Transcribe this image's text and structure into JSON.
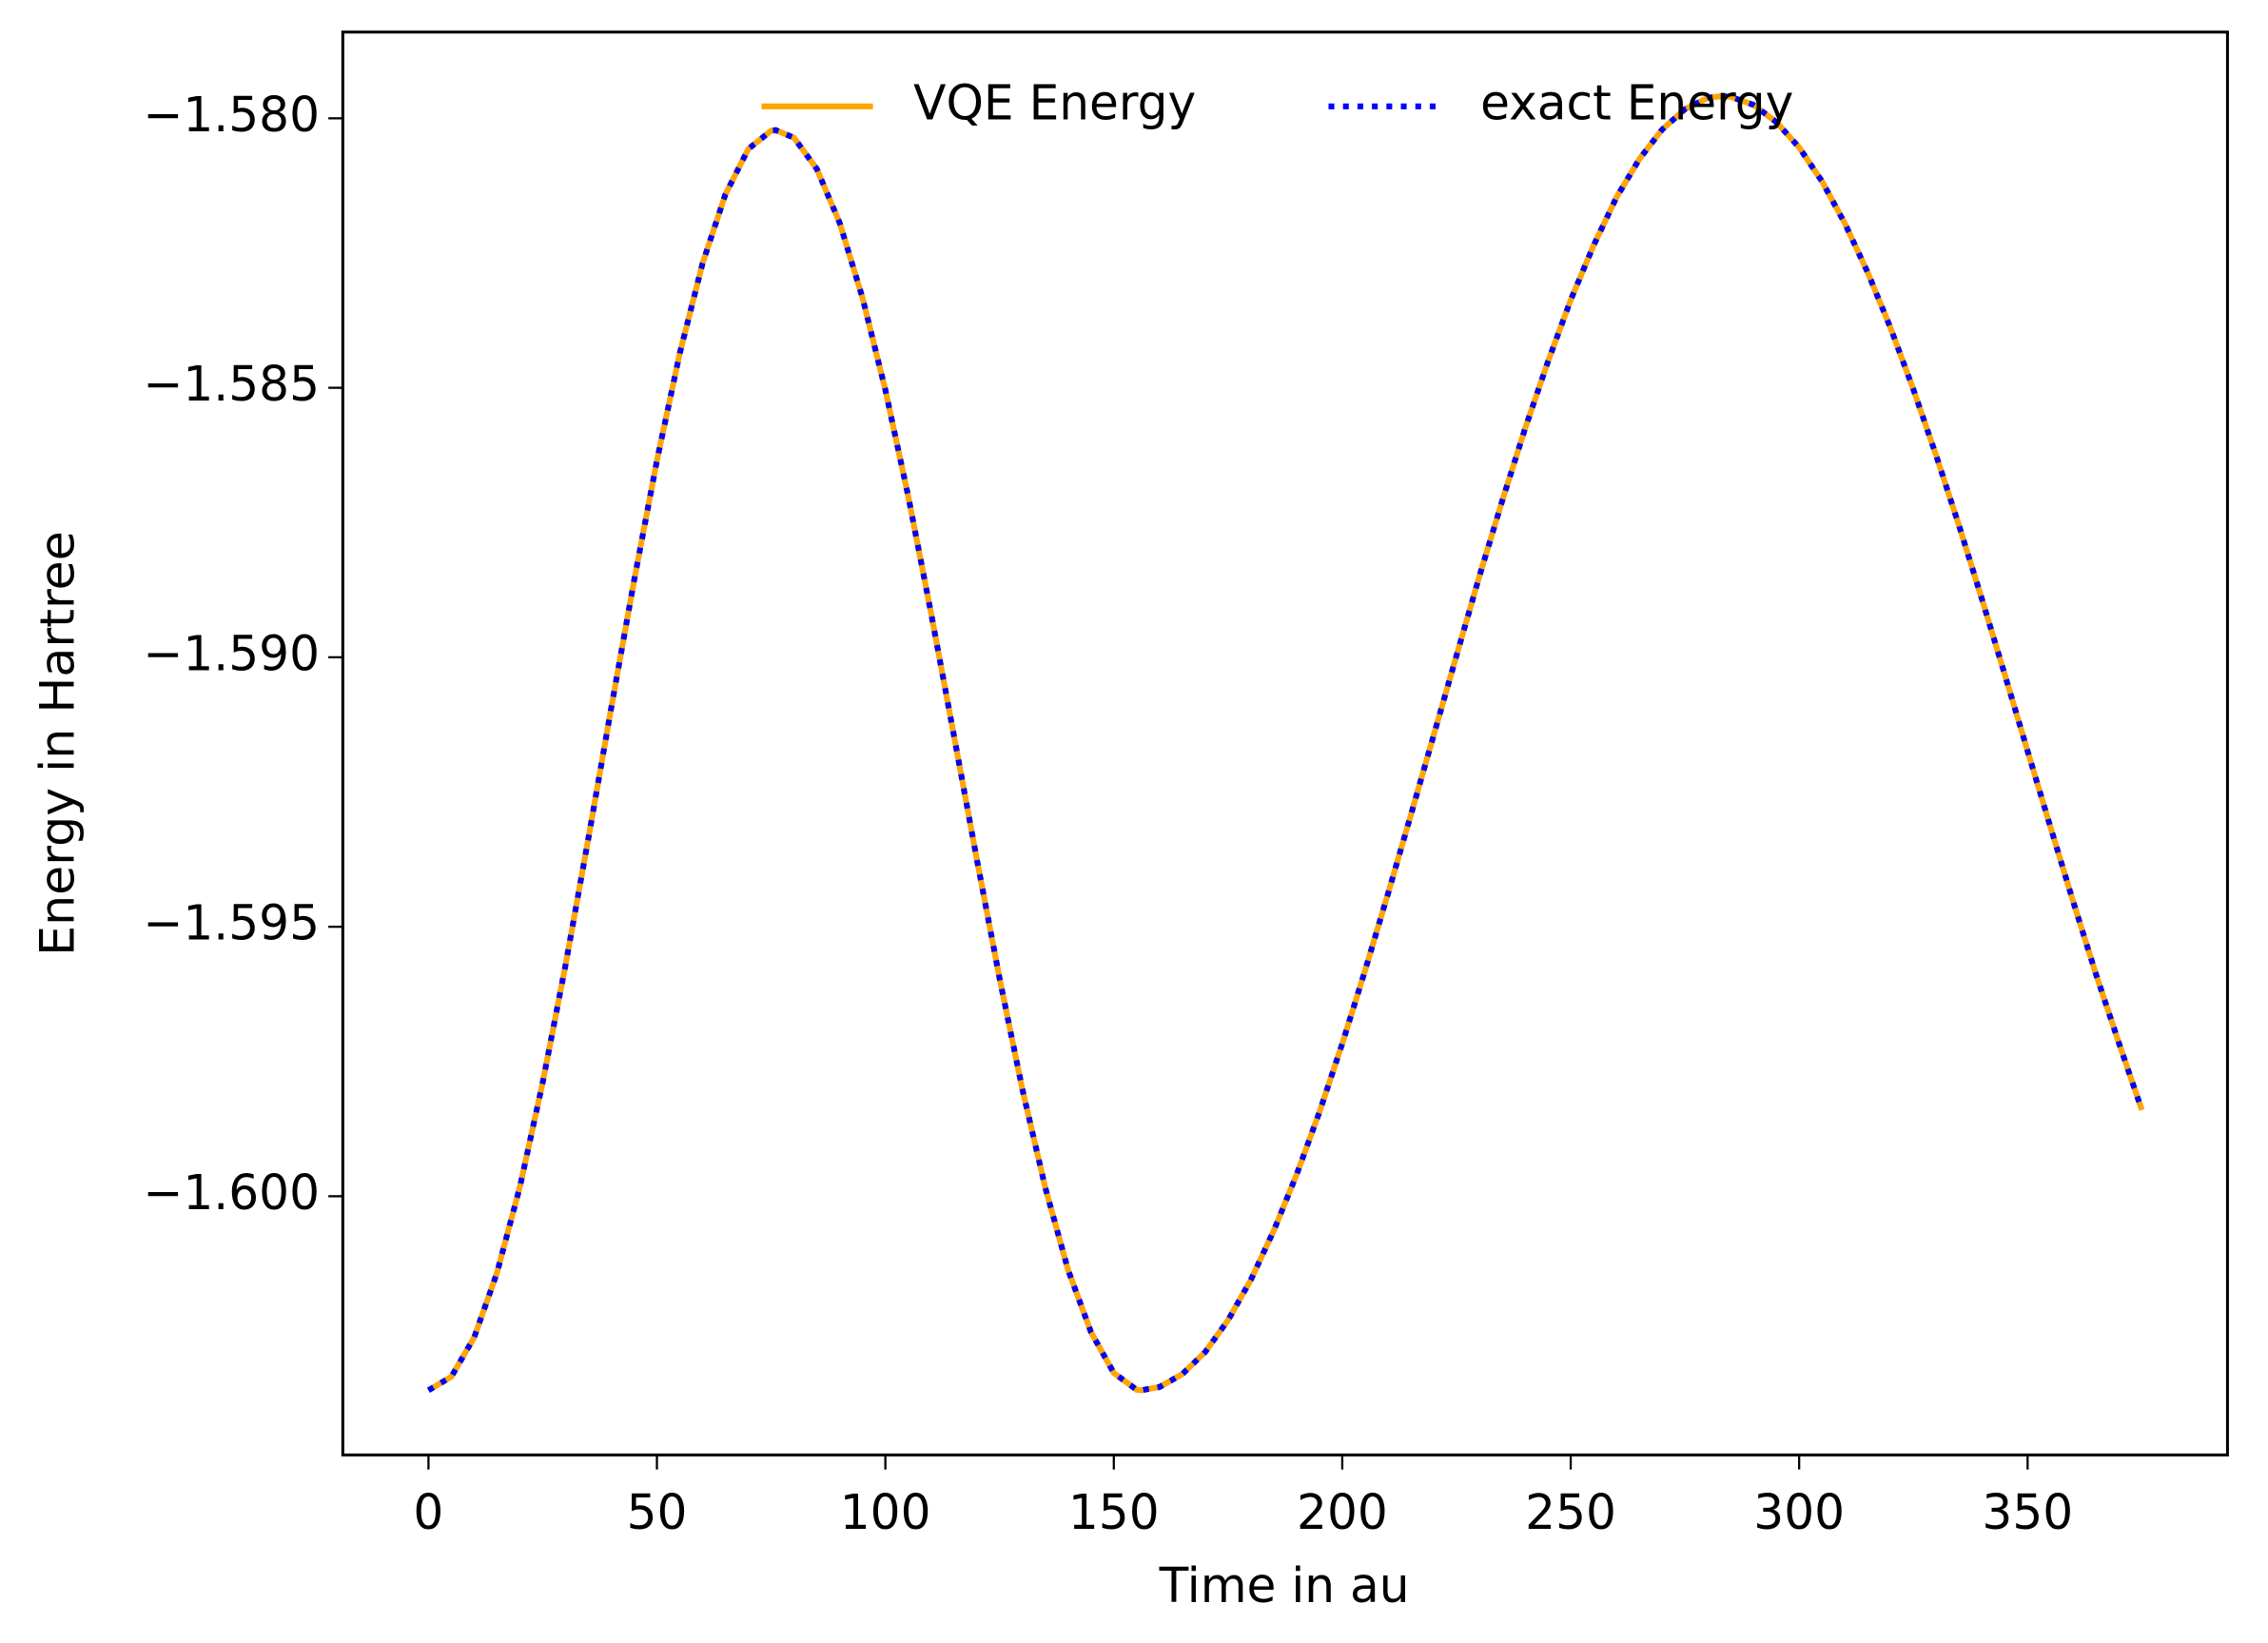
{
  "chart_data": {
    "type": "line",
    "xlabel": "Time in au",
    "ylabel": "Energy in Hartree",
    "x": [
      0,
      5,
      10,
      15,
      20,
      25,
      30,
      35,
      40,
      45,
      50,
      55,
      60,
      65,
      70,
      75,
      76,
      80,
      85,
      90,
      95,
      100,
      105,
      110,
      115,
      120,
      125,
      130,
      135,
      140,
      145,
      150,
      155,
      156,
      160,
      165,
      170,
      175,
      180,
      185,
      190,
      195,
      200,
      205,
      210,
      215,
      220,
      225,
      230,
      235,
      240,
      245,
      250,
      255,
      260,
      265,
      270,
      275,
      280,
      283,
      285,
      290,
      295,
      300,
      305,
      310,
      315,
      320,
      325,
      330,
      335,
      340,
      345,
      350,
      355,
      360,
      365,
      370,
      375
    ],
    "series": [
      {
        "name": "VQE Energy",
        "color": "#ffa500",
        "dash": "solid",
        "values": [
          -1.6036,
          -1.60335,
          -1.60262,
          -1.60142,
          -1.59983,
          -1.59789,
          -1.59571,
          -1.59336,
          -1.59094,
          -1.58858,
          -1.58635,
          -1.58436,
          -1.58269,
          -1.58141,
          -1.58057,
          -1.58023,
          -1.58022,
          -1.58036,
          -1.58094,
          -1.58194,
          -1.58333,
          -1.58504,
          -1.58701,
          -1.58918,
          -1.59145,
          -1.59374,
          -1.59596,
          -1.59802,
          -1.59984,
          -1.60137,
          -1.60252,
          -1.60328,
          -1.60359,
          -1.6036,
          -1.60354,
          -1.6033,
          -1.60289,
          -1.6023,
          -1.60155,
          -1.60064,
          -1.5996,
          -1.59844,
          -1.59717,
          -1.59581,
          -1.59439,
          -1.59293,
          -1.59145,
          -1.58997,
          -1.5885,
          -1.5871,
          -1.58576,
          -1.58452,
          -1.58337,
          -1.58236,
          -1.58147,
          -1.58076,
          -1.58021,
          -1.57983,
          -1.57962,
          -1.57959,
          -1.5796,
          -1.57975,
          -1.58007,
          -1.58054,
          -1.58117,
          -1.58195,
          -1.58286,
          -1.58389,
          -1.58503,
          -1.58626,
          -1.58756,
          -1.58892,
          -1.59032,
          -1.59174,
          -1.59315,
          -1.59454,
          -1.59589,
          -1.59716,
          -1.5984
        ]
      },
      {
        "name": "exact Energy",
        "color": "#0000ff",
        "dash": "dotted",
        "values": [
          -1.6036,
          -1.60335,
          -1.60262,
          -1.60142,
          -1.59983,
          -1.59789,
          -1.59571,
          -1.59336,
          -1.59094,
          -1.58858,
          -1.58635,
          -1.58436,
          -1.58269,
          -1.58141,
          -1.58057,
          -1.58023,
          -1.58022,
          -1.58036,
          -1.58094,
          -1.58194,
          -1.58333,
          -1.58504,
          -1.58701,
          -1.58918,
          -1.59145,
          -1.59374,
          -1.59596,
          -1.59802,
          -1.59984,
          -1.60137,
          -1.60252,
          -1.60328,
          -1.60359,
          -1.6036,
          -1.60354,
          -1.6033,
          -1.60289,
          -1.6023,
          -1.60155,
          -1.60064,
          -1.5996,
          -1.59844,
          -1.59717,
          -1.59581,
          -1.59439,
          -1.59293,
          -1.59145,
          -1.58997,
          -1.5885,
          -1.5871,
          -1.58576,
          -1.58452,
          -1.58337,
          -1.58236,
          -1.58147,
          -1.58076,
          -1.58021,
          -1.57983,
          -1.57962,
          -1.57959,
          -1.5796,
          -1.57975,
          -1.58007,
          -1.58054,
          -1.58117,
          -1.58195,
          -1.58286,
          -1.58389,
          -1.58503,
          -1.58626,
          -1.58756,
          -1.58892,
          -1.59032,
          -1.59174,
          -1.59315,
          -1.59454,
          -1.59589,
          -1.59716,
          -1.5984
        ]
      }
    ],
    "xlim": [
      -18.75,
      393.75
    ],
    "ylim": [
      -1.6048,
      -1.5784
    ],
    "xticks": [
      0,
      50,
      100,
      150,
      200,
      250,
      300,
      350
    ],
    "yticks": [
      {
        "value": -1.6,
        "label": "−1.600"
      },
      {
        "value": -1.595,
        "label": "−1.595"
      },
      {
        "value": -1.59,
        "label": "−1.590"
      },
      {
        "value": -1.585,
        "label": "−1.585"
      },
      {
        "value": -1.58,
        "label": "−1.580"
      }
    ],
    "legend": "upper center"
  }
}
